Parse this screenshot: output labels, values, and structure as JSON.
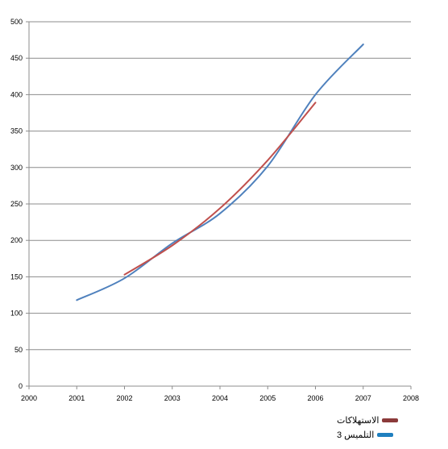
{
  "chart_data": {
    "type": "line",
    "title": "",
    "xlabel": "",
    "ylabel": "",
    "xlim": [
      2000,
      2008
    ],
    "ylim": [
      0,
      500
    ],
    "x_ticks": [
      2000,
      2001,
      2002,
      2003,
      2004,
      2005,
      2006,
      2007,
      2008
    ],
    "y_ticks": [
      0,
      50,
      100,
      150,
      200,
      250,
      300,
      350,
      400,
      450,
      500
    ],
    "grid": true,
    "legend_position": "bottom-right",
    "series": [
      {
        "name": "الاستهلاكات",
        "color": "#c0504d",
        "x": [
          2002,
          2003,
          2004,
          2005,
          2006
        ],
        "y": [
          153,
          193,
          244,
          310,
          389
        ]
      },
      {
        "name": "التلميس 3",
        "color": "#4f81bd",
        "x": [
          2001,
          2002,
          2003,
          2004,
          2005,
          2006,
          2007
        ],
        "y": [
          118,
          148,
          196,
          237,
          302,
          400,
          469
        ]
      }
    ],
    "legend_colors": [
      "#8b3a3a",
      "#1f7fbf"
    ]
  }
}
